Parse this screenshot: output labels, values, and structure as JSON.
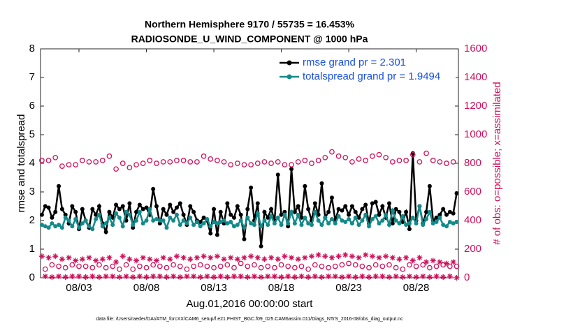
{
  "chart_data": {
    "type": "line",
    "title": "Northern Hemisphere 9170 / 55735 = 16.453%",
    "subtitle": "RADIOSONDE_U_WIND_COMPONENT @ 1000 hPa",
    "xlabel": "Aug.01,2016 00:00:00 start",
    "ylabel": "rmse and totalspread",
    "y2label": "# of obs: o=possible; x=assimilated",
    "note": "data file: /Users/raeder/DAI/ATM_forcXX/CAM6_setup/f.e21.FHIST_BGC.f09_025.CAM6assim.011/Diags_NTrS_2016-08/obs_diag_output.nc",
    "legend": "upper right",
    "xlim": [
      0.15,
      31.13
    ],
    "xticks": [
      {
        "value": 3,
        "label": "08/03"
      },
      {
        "value": 8,
        "label": "08/08"
      },
      {
        "value": 13,
        "label": "08/13"
      },
      {
        "value": 18,
        "label": "08/18"
      },
      {
        "value": 23,
        "label": "08/23"
      },
      {
        "value": 28,
        "label": "08/28"
      }
    ],
    "ylim": [
      0,
      8
    ],
    "yticks": [
      0,
      1,
      2,
      3,
      4,
      5,
      6,
      7,
      8
    ],
    "y2lim": [
      0,
      1600
    ],
    "y2ticks": [
      0,
      200,
      400,
      600,
      800,
      1000,
      1200,
      1400,
      1600
    ],
    "x": [
      0.25,
      0.5,
      0.75,
      1,
      1.25,
      1.5,
      1.75,
      2,
      2.25,
      2.5,
      2.75,
      3,
      3.25,
      3.5,
      3.75,
      4,
      4.25,
      4.5,
      4.75,
      5,
      5.25,
      5.5,
      5.75,
      6,
      6.25,
      6.5,
      6.75,
      7,
      7.25,
      7.5,
      7.75,
      8,
      8.25,
      8.5,
      8.75,
      9,
      9.25,
      9.5,
      9.75,
      10,
      10.25,
      10.5,
      10.75,
      11,
      11.25,
      11.5,
      11.75,
      12,
      12.25,
      12.5,
      12.75,
      13,
      13.25,
      13.5,
      13.75,
      14,
      14.25,
      14.5,
      14.75,
      15,
      15.25,
      15.5,
      15.75,
      16,
      16.25,
      16.5,
      16.75,
      17,
      17.25,
      17.5,
      17.75,
      18,
      18.25,
      18.5,
      18.75,
      19,
      19.25,
      19.5,
      19.75,
      20,
      20.25,
      20.5,
      20.75,
      21,
      21.25,
      21.5,
      21.75,
      22,
      22.25,
      22.5,
      22.75,
      23,
      23.25,
      23.5,
      23.75,
      24,
      24.25,
      24.5,
      24.75,
      25,
      25.25,
      25.5,
      25.75,
      26,
      26.25,
      26.5,
      26.75,
      27,
      27.25,
      27.5,
      27.75,
      28,
      28.25,
      28.5,
      28.75,
      29,
      29.25,
      29.5,
      29.75,
      30,
      30.25,
      30.5,
      30.75,
      31
    ],
    "series": [
      {
        "name": "rmse grand pr = 2.301",
        "color": "#000000",
        "marker": "dot",
        "values": [
          2.2,
          2.5,
          2.45,
          2.1,
          2.3,
          3.2,
          2.4,
          2.2,
          1.9,
          2.5,
          2.3,
          1.7,
          2.4,
          2.0,
          1.75,
          2.4,
          2.2,
          2.5,
          1.9,
          1.6,
          2.3,
          2.1,
          2.55,
          2.4,
          2.5,
          2.0,
          2.6,
          1.75,
          2.3,
          2.55,
          2.4,
          2.45,
          2.2,
          3.1,
          2.5,
          1.9,
          2.4,
          2.2,
          2.55,
          2.3,
          2.45,
          2.6,
          2.2,
          1.85,
          2.5,
          2.3,
          2.0,
          1.95,
          2.1,
          2.0,
          1.55,
          2.4,
          1.5,
          2.3,
          1.9,
          2.6,
          2.2,
          2.1,
          2.5,
          2.2,
          1.35,
          2.4,
          3.15,
          2.0,
          2.6,
          1.1,
          2.3,
          2.1,
          2.4,
          2.0,
          3.6,
          2.2,
          2.3,
          1.8,
          3.8,
          2.3,
          2.5,
          2.1,
          3.2,
          2.4,
          2.0,
          2.6,
          2.2,
          3.3,
          2.1,
          2.3,
          2.8,
          2.0,
          2.4,
          2.35,
          2.5,
          2.2,
          2.5,
          2.3,
          2.1,
          2.4,
          2.55,
          1.9,
          2.6,
          2.65,
          2.2,
          2.5,
          2.1,
          2.6,
          1.9,
          2.4,
          2.3,
          1.95,
          2.3,
          1.7,
          4.35,
          2.0,
          2.5,
          1.9,
          2.3,
          3.2,
          2.0,
          2.1,
          2.2,
          2.4,
          2.2,
          2.3,
          2.25,
          2.95
        ]
      },
      {
        "name": "totalspread grand pr = 1.9494",
        "color": "#138a8a",
        "marker": "dot",
        "values": [
          1.85,
          1.8,
          1.75,
          1.9,
          1.8,
          1.85,
          1.75,
          2.1,
          2.0,
          1.8,
          2.05,
          1.75,
          1.9,
          2.0,
          1.8,
          1.7,
          2.05,
          2.2,
          1.8,
          1.9,
          2.1,
          1.85,
          2.25,
          2.1,
          1.8,
          2.3,
          2.2,
          1.85,
          2.0,
          2.3,
          1.9,
          2.0,
          2.4,
          2.0,
          2.05,
          2.0,
          2.0,
          1.75,
          2.1,
          2.0,
          2.2,
          1.85,
          2.0,
          1.9,
          2.1,
          1.85,
          1.95,
          1.8,
          1.9,
          2.05,
          1.8,
          1.95,
          1.9,
          1.95,
          2.0,
          1.9,
          1.95,
          1.8,
          1.85,
          2.0,
          1.75,
          2.1,
          1.9,
          1.85,
          2.25,
          1.8,
          2.0,
          1.85,
          2.15,
          1.9,
          2.1,
          1.85,
          2.2,
          1.9,
          2.3,
          1.9,
          2.2,
          1.85,
          2.1,
          1.9,
          1.85,
          2.3,
          2.0,
          1.85,
          2.1,
          1.9,
          2.05,
          1.9,
          2.15,
          2.0,
          1.95,
          2.05,
          1.9,
          2.1,
          1.85,
          2.0,
          2.2,
          1.8,
          2.05,
          2.15,
          1.9,
          2.0,
          2.2,
          1.85,
          2.35,
          2.0,
          1.9,
          2.15,
          1.85,
          1.9,
          2.1,
          1.9,
          2.5,
          1.85,
          2.05,
          2.3,
          1.9,
          1.95,
          2.1,
          1.85,
          1.8,
          1.95,
          1.9,
          1.95
        ]
      },
      {
        "color": "#d0105a",
        "marker": "circle",
        "axis": "y2",
        "values": [
          820,
          60,
          820,
          90,
          840,
          80,
          780,
          70,
          790,
          90,
          790,
          80,
          820,
          80,
          810,
          70,
          810,
          90,
          820,
          70,
          850,
          80,
          760,
          60,
          800,
          90,
          770,
          60,
          790,
          80,
          800,
          70,
          820,
          90,
          800,
          80,
          810,
          70,
          810,
          90,
          820,
          80,
          820,
          60,
          810,
          80,
          810,
          90,
          850,
          80,
          830,
          70,
          820,
          80,
          810,
          90,
          790,
          70,
          800,
          100,
          790,
          80,
          790,
          90,
          800,
          70,
          810,
          80,
          800,
          70,
          810,
          90,
          790,
          80,
          790,
          70,
          810,
          80,
          820,
          60,
          800,
          90,
          820,
          80,
          840,
          70,
          880,
          80,
          850,
          90,
          840,
          100,
          810,
          90,
          830,
          80,
          820,
          70,
          850,
          90,
          860,
          80,
          840,
          90,
          810,
          70,
          820,
          60,
          820,
          90,
          860,
          80,
          810,
          90,
          870,
          70,
          820,
          80,
          810,
          90,
          800,
          80,
          810,
          80
        ]
      },
      {
        "color": "#d0105a",
        "marker": "star",
        "axis": "y2",
        "values": [
          150,
          10,
          140,
          5,
          150,
          10,
          130,
          5,
          140,
          10,
          120,
          10,
          130,
          5,
          140,
          10,
          120,
          5,
          130,
          10,
          140,
          10,
          110,
          5,
          150,
          10,
          130,
          5,
          120,
          10,
          140,
          5,
          130,
          10,
          120,
          10,
          140,
          5,
          130,
          10,
          150,
          5,
          140,
          10,
          130,
          10,
          140,
          5,
          150,
          10,
          140,
          5,
          150,
          10,
          130,
          5,
          140,
          10,
          130,
          10,
          140,
          5,
          150,
          10,
          140,
          5,
          130,
          10,
          140,
          10,
          130,
          5,
          150,
          10,
          140,
          5,
          130,
          10,
          140,
          5,
          150,
          10,
          160,
          5,
          150,
          10,
          140,
          10,
          150,
          5,
          160,
          10,
          150,
          5,
          140,
          10,
          160,
          5,
          150,
          10,
          140,
          10,
          150,
          5,
          140,
          10,
          130,
          5,
          140,
          10,
          120,
          5,
          140,
          10,
          110,
          5,
          120,
          10,
          110,
          5,
          100,
          10,
          110,
          0
        ]
      }
    ]
  }
}
